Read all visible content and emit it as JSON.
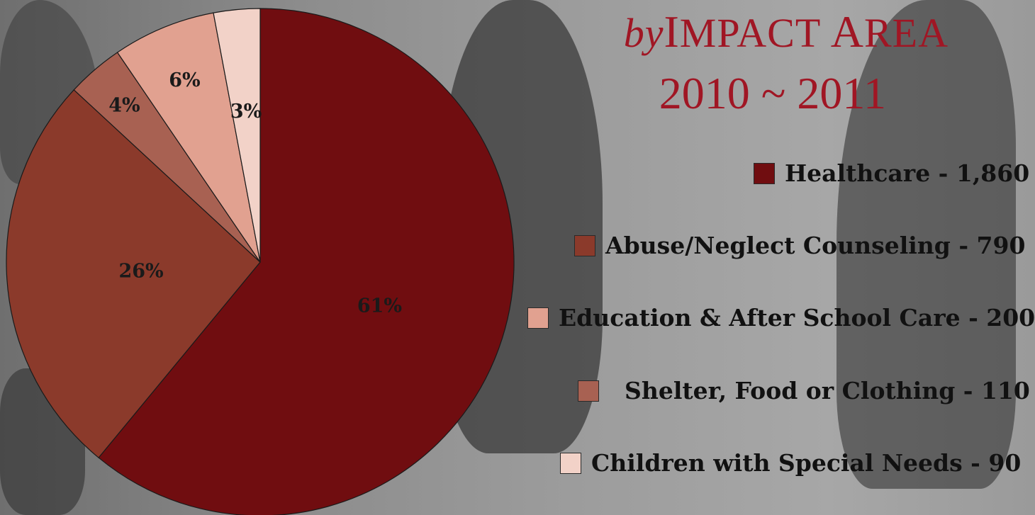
{
  "chart_data": {
    "type": "pie",
    "title_line1": {
      "prefix": "by",
      "text": "Impact Area"
    },
    "title_line2": "2010 ~ 2011",
    "slices": [
      {
        "label": "Healthcare - 1,860",
        "value": 1860,
        "percent_label": "61%",
        "color": "#700d10"
      },
      {
        "label": "Abuse/Neglect Counseling - 790",
        "value": 790,
        "percent_label": "26%",
        "color": "#8b3a2b"
      },
      {
        "label": "Shelter, Food or Clothing - 110",
        "value": 110,
        "percent_label": "4%",
        "color": "#a86152"
      },
      {
        "label": "Education & After School Care - 200",
        "value": 200,
        "percent_label": "6%",
        "color": "#e1a190"
      },
      {
        "label": "Children with Special Needs - 90",
        "value": 90,
        "percent_label": "3%",
        "color": "#f2d2c8"
      }
    ],
    "legend_position": "right"
  },
  "legend": [
    {
      "text": "Healthcare - 1,860",
      "color": "#700d10"
    },
    {
      "text": "Abuse/Neglect Counseling - 790",
      "color": "#8b3a2b"
    },
    {
      "text": "Education & After School Care - 200",
      "color": "#e1a190"
    },
    {
      "text": "Shelter, Food or Clothing - 110",
      "color": "#a86152"
    },
    {
      "text": "Children with Special Needs - 90",
      "color": "#f2d2c8"
    }
  ]
}
